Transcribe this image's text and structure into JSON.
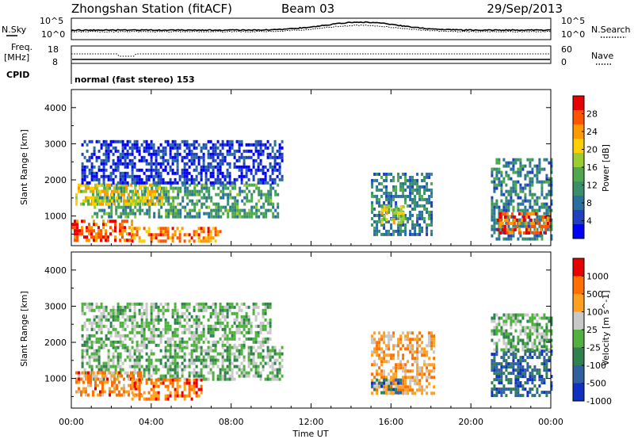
{
  "header": {
    "station_title": "Zhongshan Station (fitACF)",
    "beam": "Beam 03",
    "date": "29/Sep/2013"
  },
  "top_panels": {
    "nsky_label": "N.Sky",
    "nsky_ticks": [
      "10^5",
      "10^0"
    ],
    "nsearch_label": "N.Search",
    "nsearch_ticks": [
      "10^5",
      "10^0"
    ],
    "freq_label": "Freq.",
    "freq_unit": "[MHz]",
    "freq_ticks": [
      "18",
      "8"
    ],
    "nave_label": "Nave",
    "nave_ticks": [
      "60",
      "0"
    ],
    "cpid_label": "CPID",
    "cpid_text": "normal (fast stereo) 153"
  },
  "chart_data": [
    {
      "type": "heatmap",
      "name": "power",
      "ylabel": "Slant Range [km]",
      "ylim": [
        180,
        4500
      ],
      "yticks": [
        1000,
        2000,
        3000,
        4000
      ],
      "xlim": [
        0,
        24
      ],
      "colorbar": {
        "label": "Power [dB]",
        "range": [
          0,
          32
        ],
        "ticks": [
          "28",
          "24",
          "20",
          "16",
          "12",
          "8",
          "4"
        ],
        "colors": [
          "#0000ff",
          "#2040c0",
          "#2a6f9e",
          "#3a8f6a",
          "#4fa84e",
          "#9acd32",
          "#ffd000",
          "#ff9900",
          "#ff5500",
          "#e80000"
        ]
      },
      "regions": [
        {
          "t": [
            1.0,
            10.4
          ],
          "r": [
            1000,
            1900
          ],
          "level": 0.38
        },
        {
          "t": [
            0.2,
            4.5
          ],
          "r": [
            1300,
            1900
          ],
          "level": 0.62
        },
        {
          "t": [
            0.0,
            3.0
          ],
          "r": [
            300,
            900
          ],
          "level": 0.85
        },
        {
          "t": [
            3.0,
            7.5
          ],
          "r": [
            300,
            700
          ],
          "level": 0.78
        },
        {
          "t": [
            0.5,
            10.5
          ],
          "r": [
            1900,
            3100
          ],
          "level": 0.12
        },
        {
          "t": [
            15.0,
            18.0
          ],
          "r": [
            500,
            2200
          ],
          "level": 0.3
        },
        {
          "t": [
            15.5,
            16.6
          ],
          "r": [
            800,
            1300
          ],
          "level": 0.6
        },
        {
          "t": [
            21.0,
            24.0
          ],
          "r": [
            400,
            2600
          ],
          "level": 0.3
        },
        {
          "t": [
            21.3,
            24.0
          ],
          "r": [
            500,
            1100
          ],
          "level": 0.85
        }
      ]
    },
    {
      "type": "heatmap",
      "name": "velocity",
      "ylabel": "Slant Range [km]",
      "xlabel": "Time UT",
      "ylim": [
        180,
        4500
      ],
      "yticks": [
        1000,
        2000,
        3000,
        4000
      ],
      "xlim": [
        0,
        24
      ],
      "xticks": [
        "00:00",
        "04:00",
        "08:00",
        "12:00",
        "16:00",
        "20:00",
        "00:00"
      ],
      "colorbar": {
        "label": "Velocity [m s^-1]",
        "ticks": [
          "1000",
          "500",
          "100",
          "25",
          "-25",
          "-100",
          "-500",
          "-1000"
        ],
        "colors": [
          "#1030c0",
          "#3060a0",
          "#308050",
          "#50b040",
          "#c8c8c8",
          "#ffa020",
          "#ff7000",
          "#e80000"
        ]
      },
      "regions": [
        {
          "t": [
            0.5,
            10.6
          ],
          "r": [
            1000,
            1900
          ],
          "level": 0.45
        },
        {
          "t": [
            0.2,
            3.5
          ],
          "r": [
            500,
            1200
          ],
          "level": 0.75
        },
        {
          "t": [
            3.0,
            6.5
          ],
          "r": [
            400,
            1000
          ],
          "level": 0.8
        },
        {
          "t": [
            0.5,
            10.0
          ],
          "r": [
            1900,
            3100
          ],
          "level": 0.45
        },
        {
          "t": [
            15.0,
            18.2
          ],
          "r": [
            600,
            2300
          ],
          "level": 0.7
        },
        {
          "t": [
            15.0,
            16.5
          ],
          "r": [
            600,
            1000
          ],
          "level": 0.2
        },
        {
          "t": [
            21.0,
            24.0
          ],
          "r": [
            500,
            1800
          ],
          "level": 0.2
        },
        {
          "t": [
            21.0,
            24.0
          ],
          "r": [
            1800,
            2800
          ],
          "level": 0.45
        }
      ]
    }
  ]
}
